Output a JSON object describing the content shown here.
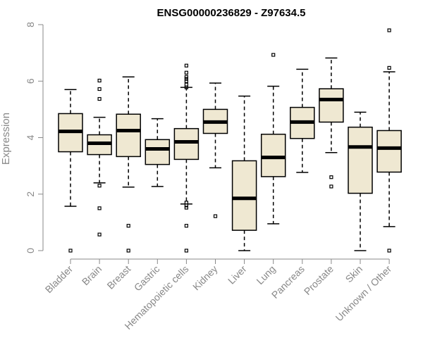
{
  "chart_data": {
    "type": "boxplot",
    "title": "ENSG00000236829 - Z97634.5",
    "xlabel": "",
    "ylabel": "Expression",
    "ylim": [
      0,
      8
    ],
    "yticks": [
      0,
      2,
      4,
      6,
      8
    ],
    "box_color": "#efe8d2",
    "categories": [
      "Bladder",
      "Brain",
      "Breast",
      "Gastric",
      "Hematopoietic cells",
      "Kidney",
      "Liver",
      "Lung",
      "Pancreas",
      "Prostate",
      "Skin",
      "Unknown / Other"
    ],
    "series": [
      {
        "name": "Bladder",
        "whisker_low": 1.57,
        "q1": 3.5,
        "median": 4.22,
        "q3": 4.85,
        "whisker_high": 5.7,
        "outliers": [
          0.0
        ]
      },
      {
        "name": "Brain",
        "whisker_low": 2.4,
        "q1": 3.4,
        "median": 3.8,
        "q3": 4.1,
        "whisker_high": 4.72,
        "outliers": [
          6.02,
          5.72,
          5.37,
          2.3,
          1.5,
          0.57
        ]
      },
      {
        "name": "Breast",
        "whisker_low": 2.25,
        "q1": 3.33,
        "median": 4.25,
        "q3": 4.83,
        "whisker_high": 6.15,
        "outliers": [
          0.88,
          0.0
        ]
      },
      {
        "name": "Gastric",
        "whisker_low": 2.27,
        "q1": 3.05,
        "median": 3.6,
        "q3": 3.93,
        "whisker_high": 4.67,
        "outliers": []
      },
      {
        "name": "Hematopoietic cells",
        "whisker_low": 1.65,
        "q1": 3.23,
        "median": 3.85,
        "q3": 4.32,
        "whisker_high": 5.78,
        "outliers": [
          6.55,
          6.3,
          6.15,
          6.08,
          6.0,
          5.88,
          5.78,
          1.7,
          1.6,
          1.52,
          0.88,
          0.0
        ]
      },
      {
        "name": "Kidney",
        "whisker_low": 2.93,
        "q1": 4.15,
        "median": 4.55,
        "q3": 5.0,
        "whisker_high": 5.93,
        "outliers": [
          1.22
        ]
      },
      {
        "name": "Liver",
        "whisker_low": 0.0,
        "q1": 0.72,
        "median": 1.85,
        "q3": 3.18,
        "whisker_high": 5.47,
        "outliers": []
      },
      {
        "name": "Lung",
        "whisker_low": 0.95,
        "q1": 2.62,
        "median": 3.3,
        "q3": 4.12,
        "whisker_high": 5.82,
        "outliers": [
          6.93
        ]
      },
      {
        "name": "Pancreas",
        "whisker_low": 2.77,
        "q1": 3.97,
        "median": 4.55,
        "q3": 5.07,
        "whisker_high": 6.42,
        "outliers": []
      },
      {
        "name": "Prostate",
        "whisker_low": 3.47,
        "q1": 4.55,
        "median": 5.35,
        "q3": 5.73,
        "whisker_high": 6.82,
        "outliers": [
          2.6,
          2.27
        ]
      },
      {
        "name": "Skin",
        "whisker_low": 0.0,
        "q1": 2.03,
        "median": 3.67,
        "q3": 4.37,
        "whisker_high": 4.9,
        "outliers": []
      },
      {
        "name": "Unknown / Other",
        "whisker_low": 0.85,
        "q1": 2.78,
        "median": 3.63,
        "q3": 4.25,
        "whisker_high": 6.33,
        "outliers": [
          7.8,
          6.47,
          0.0
        ]
      }
    ]
  }
}
